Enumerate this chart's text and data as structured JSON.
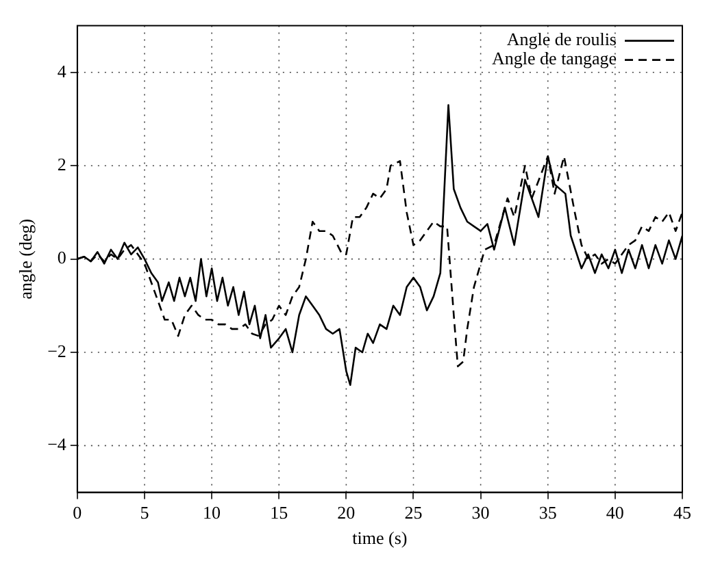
{
  "chart_data": {
    "type": "line",
    "xlabel": "time (s)",
    "ylabel": "angle (deg)",
    "xlim": [
      0,
      45
    ],
    "ylim": [
      -5,
      5
    ],
    "xticks": [
      0,
      5,
      10,
      15,
      20,
      25,
      30,
      35,
      40,
      45
    ],
    "yticks": [
      {
        "value": -4,
        "label": "−4"
      },
      {
        "value": -2,
        "label": "−2"
      },
      0,
      2,
      4
    ],
    "grid": true,
    "legend": "top right",
    "marker": "none",
    "series": [
      {
        "name": "Angle de roulis",
        "color": "#000000",
        "line_style": "solid",
        "x": [
          0,
          0.5,
          1,
          1.5,
          2,
          2.5,
          3,
          3.5,
          4,
          4.5,
          5,
          5.5,
          6,
          6.3,
          6.8,
          7.2,
          7.6,
          8,
          8.4,
          8.8,
          9.2,
          9.6,
          10,
          10.4,
          10.8,
          11.2,
          11.6,
          12,
          12.4,
          12.8,
          13.2,
          13.6,
          14,
          14.4,
          15,
          15.5,
          16,
          16.5,
          17,
          17.5,
          18,
          18.5,
          19,
          19.5,
          20,
          20.3,
          20.7,
          21.2,
          21.6,
          22,
          22.5,
          23,
          23.5,
          24,
          24.5,
          25,
          25.5,
          26,
          26.5,
          27,
          27.3,
          27.6,
          28,
          28.5,
          29,
          29.5,
          30,
          30.5,
          31,
          31.8,
          32.5,
          33.3,
          34.3,
          35,
          35.5,
          36.3,
          36.7,
          37.5,
          38,
          38.5,
          39,
          39.5,
          40,
          40.5,
          41,
          41.5,
          42,
          42.5,
          43,
          43.5,
          44,
          44.5,
          45
        ],
        "values": [
          0,
          0.05,
          -0.05,
          0.15,
          -0.1,
          0.2,
          0,
          0.35,
          0.1,
          0.25,
          0,
          -0.3,
          -0.5,
          -0.9,
          -0.5,
          -0.9,
          -0.4,
          -0.8,
          -0.4,
          -0.9,
          0,
          -0.8,
          -0.2,
          -0.9,
          -0.4,
          -1,
          -0.6,
          -1.2,
          -0.7,
          -1.4,
          -1,
          -1.7,
          -1.2,
          -1.9,
          -1.7,
          -1.5,
          -2,
          -1.2,
          -0.8,
          -1,
          -1.2,
          -1.5,
          -1.6,
          -1.5,
          -2.4,
          -2.7,
          -1.9,
          -2,
          -1.6,
          -1.8,
          -1.4,
          -1.5,
          -1,
          -1.2,
          -0.6,
          -0.4,
          -0.6,
          -1.1,
          -0.8,
          -0.3,
          1.5,
          3.3,
          1.5,
          1.1,
          0.8,
          0.7,
          0.6,
          0.75,
          0.2,
          1.1,
          0.3,
          1.7,
          0.9,
          2.2,
          1.6,
          1.4,
          0.5,
          -0.2,
          0.1,
          -0.3,
          0.1,
          -0.2,
          0.2,
          -0.3,
          0.2,
          -0.2,
          0.3,
          -0.2,
          0.3,
          -0.1,
          0.4,
          0,
          0.5
        ]
      },
      {
        "name": "Angle de tangage",
        "color": "#000000",
        "line_style": "dashed",
        "x": [
          0,
          0.5,
          1,
          1.5,
          2,
          2.5,
          3,
          3.5,
          4,
          4.5,
          5,
          5.5,
          6,
          6.5,
          7,
          7.5,
          8,
          8.5,
          9,
          9.5,
          10,
          10.5,
          11,
          11.5,
          12,
          12.5,
          13,
          13.5,
          14,
          14.5,
          15,
          15.5,
          16,
          16.5,
          17,
          17.5,
          18,
          18.5,
          19,
          19.7,
          20,
          20.5,
          21,
          21.5,
          22,
          22.5,
          23,
          23.3,
          24,
          24.5,
          25,
          25.5,
          26,
          26.5,
          27,
          27.5,
          28,
          28.3,
          28.7,
          29,
          29.5,
          30.3,
          31,
          32,
          32.5,
          33.3,
          33.8,
          35,
          35.5,
          36.2,
          37,
          37.5,
          38,
          38.5,
          39,
          39.5,
          40,
          40.5,
          41,
          41.5,
          42,
          42.5,
          43,
          43.5,
          44,
          44.5,
          45
        ],
        "values": [
          0,
          0.05,
          -0.05,
          0.1,
          -0.05,
          0.1,
          0,
          0.2,
          0.3,
          0.1,
          -0.1,
          -0.5,
          -0.9,
          -1.3,
          -1.3,
          -1.65,
          -1.2,
          -1,
          -1.2,
          -1.3,
          -1.3,
          -1.4,
          -1.4,
          -1.5,
          -1.5,
          -1.4,
          -1.6,
          -1.65,
          -1.4,
          -1.3,
          -1,
          -1.2,
          -0.8,
          -0.6,
          0,
          0.8,
          0.6,
          0.6,
          0.5,
          0.1,
          0.1,
          0.9,
          0.9,
          1.1,
          1.4,
          1.3,
          1.5,
          2,
          2.1,
          1,
          0.3,
          0.4,
          0.6,
          0.8,
          0.7,
          0.7,
          -1.2,
          -2.3,
          -2.2,
          -1.5,
          -0.6,
          0.2,
          0.3,
          1.3,
          0.9,
          2,
          1.3,
          2.2,
          1.4,
          2.2,
          1,
          0.3,
          0,
          0.1,
          -0.1,
          0,
          -0.1,
          0.1,
          0.3,
          0.4,
          0.7,
          0.6,
          0.9,
          0.8,
          1,
          0.6,
          1
        ]
      }
    ]
  }
}
